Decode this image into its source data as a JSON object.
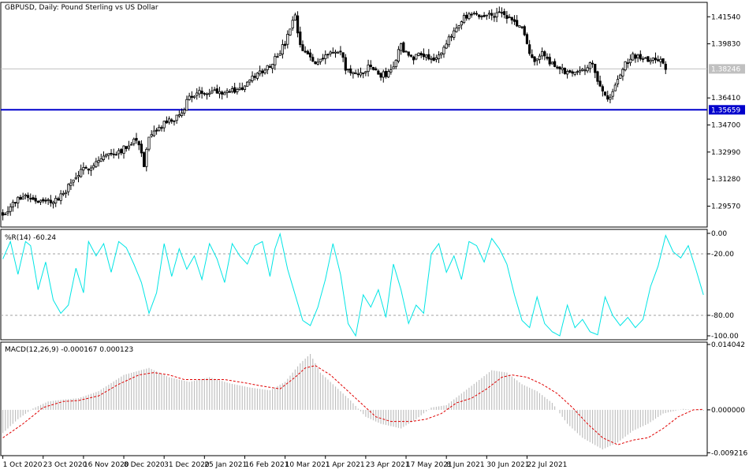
{
  "chart_data": [
    {
      "type": "candlestick",
      "title": "GBPUSD, Daily:  Pound Sterling vs US Dollar",
      "symbol": "GBPUSD",
      "timeframe": "Daily",
      "description": "Pound Sterling vs US Dollar",
      "ylim": [
        1.2825,
        1.4245
      ],
      "y_ticks": [
        "1.41540",
        "1.39830",
        "1.38246",
        "1.36410",
        "1.35659",
        "1.34700",
        "1.32990",
        "1.31280",
        "1.29570"
      ],
      "current_price": "1.38246",
      "horizontal_line": {
        "value": "1.35659",
        "color": "#0000cc"
      },
      "candle_colors": {
        "up": "#ffffff",
        "down": "#000000",
        "wick": "#000000"
      },
      "x_labels": [
        "1 Oct 2020",
        "23 Oct 2020",
        "16 Nov 2020",
        "8 Dec 2020",
        "31 Dec 2020",
        "25 Jan 2021",
        "16 Feb 2021",
        "10 Mar 2021",
        "1 Apr 2021",
        "23 Apr 2021",
        "17 May 2021",
        "8 Jun 2021",
        "30 Jun 2021",
        "22 Jul 2021"
      ],
      "close_anchors": [
        [
          0,
          1.291
        ],
        [
          8,
          1.303
        ],
        [
          16,
          1.298
        ],
        [
          22,
          1.3
        ],
        [
          30,
          1.316
        ],
        [
          40,
          1.327
        ],
        [
          48,
          1.332
        ],
        [
          52,
          1.338
        ],
        [
          54,
          1.336
        ],
        [
          56,
          1.322
        ],
        [
          58,
          1.338
        ],
        [
          64,
          1.348
        ],
        [
          70,
          1.352
        ],
        [
          74,
          1.365
        ],
        [
          82,
          1.369
        ],
        [
          90,
          1.368
        ],
        [
          96,
          1.371
        ],
        [
          100,
          1.378
        ],
        [
          106,
          1.385
        ],
        [
          112,
          1.398
        ],
        [
          114,
          1.408
        ],
        [
          116,
          1.415
        ],
        [
          118,
          1.396
        ],
        [
          124,
          1.386
        ],
        [
          128,
          1.392
        ],
        [
          134,
          1.393
        ],
        [
          136,
          1.383
        ],
        [
          140,
          1.378
        ],
        [
          146,
          1.384
        ],
        [
          150,
          1.378
        ],
        [
          154,
          1.381
        ],
        [
          158,
          1.397
        ],
        [
          162,
          1.389
        ],
        [
          166,
          1.393
        ],
        [
          170,
          1.389
        ],
        [
          174,
          1.391
        ],
        [
          178,
          1.404
        ],
        [
          182,
          1.414
        ],
        [
          186,
          1.416
        ],
        [
          190,
          1.416
        ],
        [
          194,
          1.417
        ],
        [
          198,
          1.417
        ],
        [
          202,
          1.413
        ],
        [
          206,
          1.408
        ],
        [
          210,
          1.388
        ],
        [
          214,
          1.392
        ],
        [
          220,
          1.383
        ],
        [
          224,
          1.38
        ],
        [
          230,
          1.383
        ],
        [
          234,
          1.385
        ],
        [
          238,
          1.368
        ],
        [
          240,
          1.362
        ],
        [
          242,
          1.368
        ],
        [
          246,
          1.383
        ],
        [
          250,
          1.391
        ],
        [
          254,
          1.388
        ],
        [
          258,
          1.389
        ],
        [
          262,
          1.387
        ],
        [
          263,
          1.3825
        ]
      ]
    },
    {
      "type": "line",
      "title": "%R(14) -60.24",
      "indicator": "Williams %R",
      "period": 14,
      "last_value": -60.24,
      "ylim": [
        -100,
        0
      ],
      "y_ticks": [
        "0.00",
        "-20.00",
        "-80.00",
        "-100.00"
      ],
      "levels": [
        -20,
        -80
      ],
      "line_color": "#00e5e5",
      "anchors": [
        [
          0,
          -25
        ],
        [
          3,
          -8
        ],
        [
          6,
          -40
        ],
        [
          9,
          -8
        ],
        [
          11,
          -12
        ],
        [
          14,
          -55
        ],
        [
          17,
          -28
        ],
        [
          20,
          -65
        ],
        [
          23,
          -78
        ],
        [
          26,
          -70
        ],
        [
          29,
          -34
        ],
        [
          32,
          -58
        ],
        [
          34,
          -8
        ],
        [
          37,
          -22
        ],
        [
          40,
          -10
        ],
        [
          43,
          -38
        ],
        [
          46,
          -8
        ],
        [
          49,
          -14
        ],
        [
          52,
          -30
        ],
        [
          55,
          -48
        ],
        [
          58,
          -78
        ],
        [
          61,
          -58
        ],
        [
          64,
          -10
        ],
        [
          67,
          -42
        ],
        [
          70,
          -15
        ],
        [
          73,
          -35
        ],
        [
          76,
          -22
        ],
        [
          79,
          -45
        ],
        [
          82,
          -10
        ],
        [
          85,
          -25
        ],
        [
          88,
          -48
        ],
        [
          91,
          -10
        ],
        [
          94,
          -22
        ],
        [
          97,
          -30
        ],
        [
          100,
          -12
        ],
        [
          103,
          -8
        ],
        [
          106,
          -42
        ],
        [
          108,
          -15
        ],
        [
          110,
          -0.5
        ],
        [
          113,
          -35
        ],
        [
          116,
          -60
        ],
        [
          119,
          -85
        ],
        [
          122,
          -90
        ],
        [
          125,
          -72
        ],
        [
          128,
          -45
        ],
        [
          131,
          -10
        ],
        [
          134,
          -40
        ],
        [
          137,
          -88
        ],
        [
          140,
          -100
        ],
        [
          143,
          -60
        ],
        [
          146,
          -72
        ],
        [
          149,
          -55
        ],
        [
          152,
          -82
        ],
        [
          155,
          -30
        ],
        [
          158,
          -55
        ],
        [
          161,
          -88
        ],
        [
          164,
          -70
        ],
        [
          167,
          -78
        ],
        [
          170,
          -20
        ],
        [
          173,
          -10
        ],
        [
          176,
          -38
        ],
        [
          179,
          -22
        ],
        [
          182,
          -45
        ],
        [
          185,
          -8
        ],
        [
          188,
          -12
        ],
        [
          191,
          -28
        ],
        [
          194,
          -5
        ],
        [
          197,
          -15
        ],
        [
          200,
          -30
        ],
        [
          203,
          -60
        ],
        [
          206,
          -85
        ],
        [
          209,
          -92
        ],
        [
          212,
          -62
        ],
        [
          215,
          -88
        ],
        [
          218,
          -96
        ],
        [
          221,
          -100
        ],
        [
          224,
          -70
        ],
        [
          227,
          -92
        ],
        [
          230,
          -84
        ],
        [
          233,
          -96
        ],
        [
          236,
          -99
        ],
        [
          239,
          -62
        ],
        [
          242,
          -80
        ],
        [
          245,
          -90
        ],
        [
          248,
          -82
        ],
        [
          251,
          -92
        ],
        [
          254,
          -84
        ],
        [
          257,
          -52
        ],
        [
          260,
          -32
        ],
        [
          263,
          -2
        ],
        [
          266,
          -18
        ],
        [
          269,
          -24
        ],
        [
          272,
          -12
        ],
        [
          275,
          -35
        ],
        [
          278,
          -60
        ]
      ]
    },
    {
      "type": "bar",
      "title": "MACD(12,26,9) -0.000167 0.000123",
      "indicator": "MACD",
      "params": [
        12,
        26,
        9
      ],
      "main_value": -0.000167,
      "signal_value": 0.000123,
      "ylim": [
        -0.0095,
        0.0142
      ],
      "y_ticks": [
        "0.014042",
        "0.000000",
        "-0.009216"
      ],
      "histogram_color": "#c0c0c0",
      "signal_color": "#e00000",
      "histogram_anchors": [
        [
          0,
          -0.005
        ],
        [
          6,
          -0.002
        ],
        [
          12,
          0.0003
        ],
        [
          18,
          0.0018
        ],
        [
          24,
          0.0022
        ],
        [
          30,
          0.0025
        ],
        [
          38,
          0.004
        ],
        [
          48,
          0.0075
        ],
        [
          58,
          0.009
        ],
        [
          66,
          0.007
        ],
        [
          74,
          0.006
        ],
        [
          82,
          0.007
        ],
        [
          90,
          0.0057
        ],
        [
          98,
          0.0048
        ],
        [
          106,
          0.0042
        ],
        [
          112,
          0.006
        ],
        [
          118,
          0.01
        ],
        [
          122,
          0.012
        ],
        [
          126,
          0.008
        ],
        [
          132,
          0.005
        ],
        [
          138,
          0.002
        ],
        [
          144,
          -0.0015
        ],
        [
          150,
          -0.003
        ],
        [
          158,
          -0.004
        ],
        [
          164,
          -0.002
        ],
        [
          170,
          0.0005
        ],
        [
          176,
          0.001
        ],
        [
          182,
          0.0035
        ],
        [
          188,
          0.006
        ],
        [
          194,
          0.0085
        ],
        [
          200,
          0.008
        ],
        [
          206,
          0.0055
        ],
        [
          212,
          0.004
        ],
        [
          218,
          0.0015
        ],
        [
          224,
          -0.003
        ],
        [
          230,
          -0.006
        ],
        [
          238,
          -0.0085
        ],
        [
          244,
          -0.007
        ],
        [
          250,
          -0.0045
        ],
        [
          256,
          -0.003
        ],
        [
          262,
          -0.0008
        ],
        [
          270,
          0.0002
        ],
        [
          278,
          -0.0002
        ]
      ],
      "signal_anchors": [
        [
          0,
          -0.006
        ],
        [
          8,
          -0.003
        ],
        [
          16,
          0.0005
        ],
        [
          24,
          0.0018
        ],
        [
          30,
          0.002
        ],
        [
          38,
          0.003
        ],
        [
          46,
          0.0055
        ],
        [
          54,
          0.0075
        ],
        [
          60,
          0.008
        ],
        [
          66,
          0.0075
        ],
        [
          72,
          0.0065
        ],
        [
          80,
          0.0065
        ],
        [
          88,
          0.0065
        ],
        [
          96,
          0.0058
        ],
        [
          104,
          0.005
        ],
        [
          110,
          0.0045
        ],
        [
          116,
          0.007
        ],
        [
          120,
          0.009
        ],
        [
          124,
          0.0095
        ],
        [
          130,
          0.0075
        ],
        [
          136,
          0.0045
        ],
        [
          142,
          0.0015
        ],
        [
          148,
          -0.0015
        ],
        [
          154,
          -0.0025
        ],
        [
          162,
          -0.0025
        ],
        [
          168,
          -0.002
        ],
        [
          174,
          -0.0008
        ],
        [
          180,
          0.0015
        ],
        [
          186,
          0.0025
        ],
        [
          192,
          0.0045
        ],
        [
          198,
          0.007
        ],
        [
          202,
          0.0075
        ],
        [
          208,
          0.007
        ],
        [
          214,
          0.0055
        ],
        [
          220,
          0.0035
        ],
        [
          226,
          0.0005
        ],
        [
          232,
          -0.003
        ],
        [
          238,
          -0.006
        ],
        [
          244,
          -0.0075
        ],
        [
          250,
          -0.0065
        ],
        [
          256,
          -0.006
        ],
        [
          262,
          -0.004
        ],
        [
          268,
          -0.0015
        ],
        [
          274,
          0.0
        ],
        [
          278,
          0.0001
        ]
      ]
    }
  ]
}
